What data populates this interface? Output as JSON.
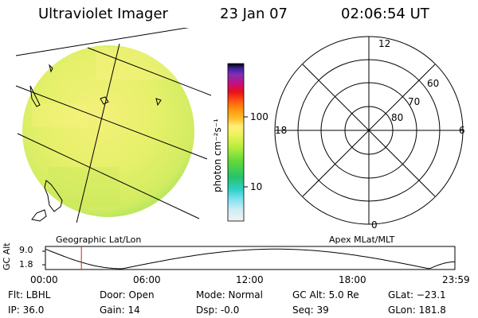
{
  "header": {
    "title": "Ultraviolet Imager",
    "date": "23 Jan 07",
    "time": "02:06:54 UT"
  },
  "colorbar": {
    "unit_label": "photon cm⁻²s⁻¹",
    "ticks": [
      "100",
      "10"
    ]
  },
  "left_panel": {
    "caption": "Geographic Lat/Lon"
  },
  "right_panel": {
    "caption": "Apex MLat/MLT",
    "mlt_labels": {
      "top": "12",
      "left": "18",
      "right": "6",
      "bottom": "0"
    },
    "mlat_labels": [
      "60",
      "70",
      "80"
    ]
  },
  "timeline": {
    "ylabel": "GC Alt",
    "ymax_label": "9.0",
    "ymin_label": "1.8",
    "x_labels": [
      "00:00",
      "06:00",
      "12:00",
      "18:00",
      "23:59"
    ],
    "current_hour": 2.11
  },
  "status": {
    "flt": "Flt: LBHL",
    "ip": "IP: 36.0",
    "door": "Door: Open",
    "gain": "Gain: 14",
    "mode": "Mode: Normal",
    "dsp": "Dsp:    -0.0",
    "gc_alt": "GC Alt: 5.0 Re",
    "seq": "Seq: 39",
    "glat": "GLat: −23.1",
    "glon": "GLon: 181.8"
  }
}
